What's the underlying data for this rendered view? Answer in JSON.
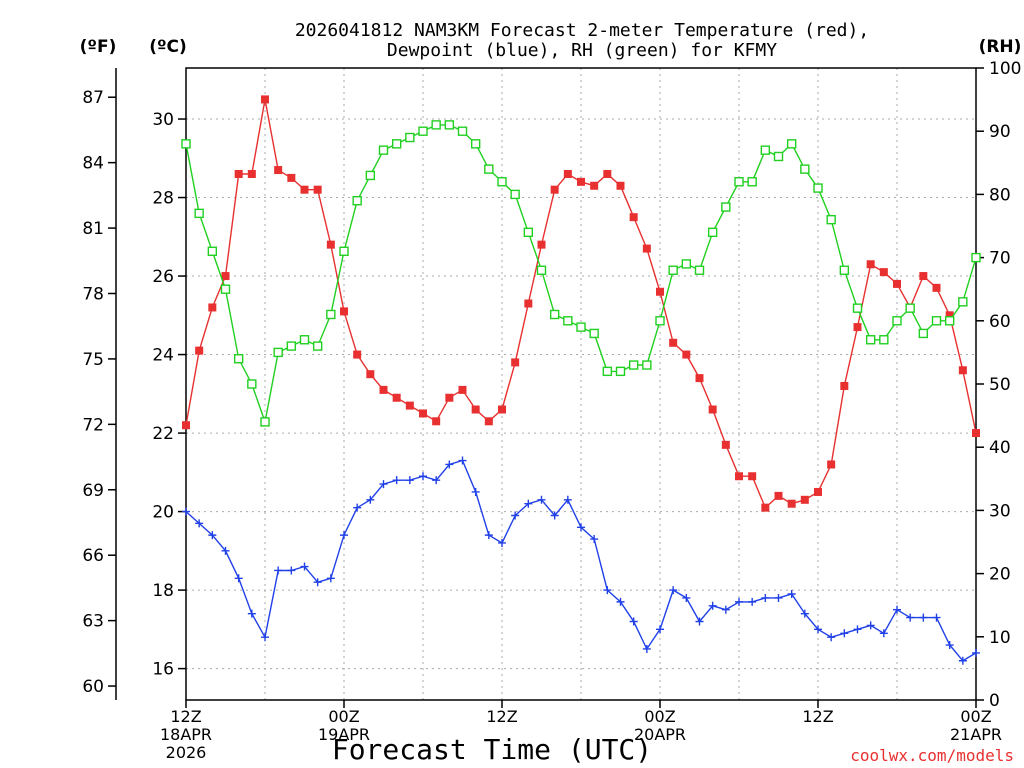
{
  "chart_data": {
    "type": "line",
    "title": "2026041812 NAM3KM Forecast 2-meter Temperature (red),",
    "title_line2": "Dewpoint (blue), RH (green) for KFMY",
    "xlabel": "Forecast Time (UTC)",
    "credit": "coolwx.com/models",
    "y_left_outer_unit": "(ºF)",
    "y_left_inner_unit": "(ºC)",
    "y_right_unit": "(RH)",
    "x_range_hours": [
      0,
      60
    ],
    "x_ticks": [
      {
        "hour": 0,
        "lines": [
          "12Z",
          "18APR",
          "2026"
        ]
      },
      {
        "hour": 12,
        "lines": [
          "00Z",
          "19APR"
        ]
      },
      {
        "hour": 24,
        "lines": [
          "12Z"
        ]
      },
      {
        "hour": 36,
        "lines": [
          "00Z",
          "20APR"
        ]
      },
      {
        "hour": 48,
        "lines": [
          "12Z"
        ]
      },
      {
        "hour": 60,
        "lines": [
          "00Z",
          "21APR"
        ]
      }
    ],
    "ylim_c": [
      15.2,
      31.3
    ],
    "y_ticks_c": [
      "16",
      "18",
      "20",
      "22",
      "24",
      "26",
      "28",
      "30"
    ],
    "y_ticks_f": [
      "60",
      "63",
      "66",
      "69",
      "72",
      "75",
      "78",
      "81",
      "84",
      "87"
    ],
    "ylim_rh": [
      0,
      100
    ],
    "y_ticks_rh": [
      "0",
      "10",
      "20",
      "30",
      "40",
      "50",
      "60",
      "70",
      "80",
      "90",
      "100"
    ],
    "series": [
      {
        "name": "2-meter Temperature",
        "units": "C",
        "color": "#e83030",
        "marker": "filled-square",
        "x": [
          0,
          1,
          2,
          3,
          4,
          5,
          6,
          7,
          8,
          9,
          10,
          11,
          12,
          13,
          14,
          15,
          16,
          17,
          18,
          19,
          20,
          21,
          22,
          23,
          24,
          25,
          26,
          27,
          28,
          29,
          30,
          31,
          32,
          33,
          34,
          35,
          36,
          37,
          38,
          39,
          40,
          41,
          42,
          43,
          44,
          45,
          46,
          47,
          48,
          49,
          50,
          51,
          52,
          53,
          54,
          55,
          56,
          57,
          58,
          59,
          60
        ],
        "values": [
          22.2,
          24.1,
          25.2,
          26.0,
          28.6,
          28.6,
          30.5,
          28.7,
          28.5,
          28.2,
          28.2,
          26.8,
          25.1,
          24.0,
          23.5,
          23.1,
          22.9,
          22.7,
          22.5,
          22.3,
          22.9,
          23.1,
          22.6,
          22.3,
          22.6,
          23.8,
          25.3,
          26.8,
          28.2,
          28.6,
          28.4,
          28.3,
          28.6,
          28.3,
          27.5,
          26.7,
          25.6,
          24.3,
          24.0,
          23.4,
          22.6,
          21.7,
          20.9,
          20.9,
          20.1,
          20.4,
          20.2,
          20.3,
          20.5,
          21.2,
          23.2,
          24.7,
          26.3,
          26.1,
          25.8,
          25.2,
          26.0,
          25.7,
          25.0,
          23.6,
          22.0
        ]
      },
      {
        "name": "Dewpoint",
        "units": "C",
        "color": "#2040e8",
        "marker": "plus",
        "x": [
          0,
          1,
          2,
          3,
          4,
          5,
          6,
          7,
          8,
          9,
          10,
          11,
          12,
          13,
          14,
          15,
          16,
          17,
          18,
          19,
          20,
          21,
          22,
          23,
          24,
          25,
          26,
          27,
          28,
          29,
          30,
          31,
          32,
          33,
          34,
          35,
          36,
          37,
          38,
          39,
          40,
          41,
          42,
          43,
          44,
          45,
          46,
          47,
          48,
          49,
          50,
          51,
          52,
          53,
          54,
          55,
          56,
          57,
          58,
          59,
          60
        ],
        "values": [
          20.0,
          19.7,
          19.4,
          19.0,
          18.3,
          17.4,
          16.8,
          18.5,
          18.5,
          18.6,
          18.2,
          18.3,
          19.4,
          20.1,
          20.3,
          20.7,
          20.8,
          20.8,
          20.9,
          20.8,
          21.2,
          21.3,
          20.5,
          19.4,
          19.2,
          19.9,
          20.2,
          20.3,
          19.9,
          20.3,
          19.6,
          19.3,
          18.0,
          17.7,
          17.2,
          16.5,
          17.0,
          18.0,
          17.8,
          17.2,
          17.6,
          17.5,
          17.7,
          17.7,
          17.8,
          17.8,
          17.9,
          17.4,
          17.0,
          16.8,
          16.9,
          17.0,
          17.1,
          16.9,
          17.5,
          17.3,
          17.3,
          17.3,
          16.6,
          16.2,
          16.4
        ]
      },
      {
        "name": "RH",
        "units": "%",
        "color": "#20d020",
        "marker": "open-square",
        "x": [
          0,
          1,
          2,
          3,
          4,
          5,
          6,
          7,
          8,
          9,
          10,
          11,
          12,
          13,
          14,
          15,
          16,
          17,
          18,
          19,
          20,
          21,
          22,
          23,
          24,
          25,
          26,
          27,
          28,
          29,
          30,
          31,
          32,
          33,
          34,
          35,
          36,
          37,
          38,
          39,
          40,
          41,
          42,
          43,
          44,
          45,
          46,
          47,
          48,
          49,
          50,
          51,
          52,
          53,
          54,
          55,
          56,
          57,
          58,
          59,
          60
        ],
        "values": [
          88,
          77,
          71,
          65,
          54,
          50,
          44,
          55,
          56,
          57,
          56,
          61,
          71,
          79,
          83,
          87,
          88,
          89,
          90,
          91,
          91,
          90,
          88,
          84,
          82,
          80,
          74,
          68,
          61,
          60,
          59,
          58,
          52,
          52,
          53,
          53,
          60,
          68,
          69,
          68,
          74,
          78,
          82,
          82,
          87,
          86,
          88,
          84,
          81,
          76,
          68,
          62,
          57,
          57,
          60,
          62,
          58,
          60,
          60,
          63,
          70
        ]
      }
    ]
  }
}
